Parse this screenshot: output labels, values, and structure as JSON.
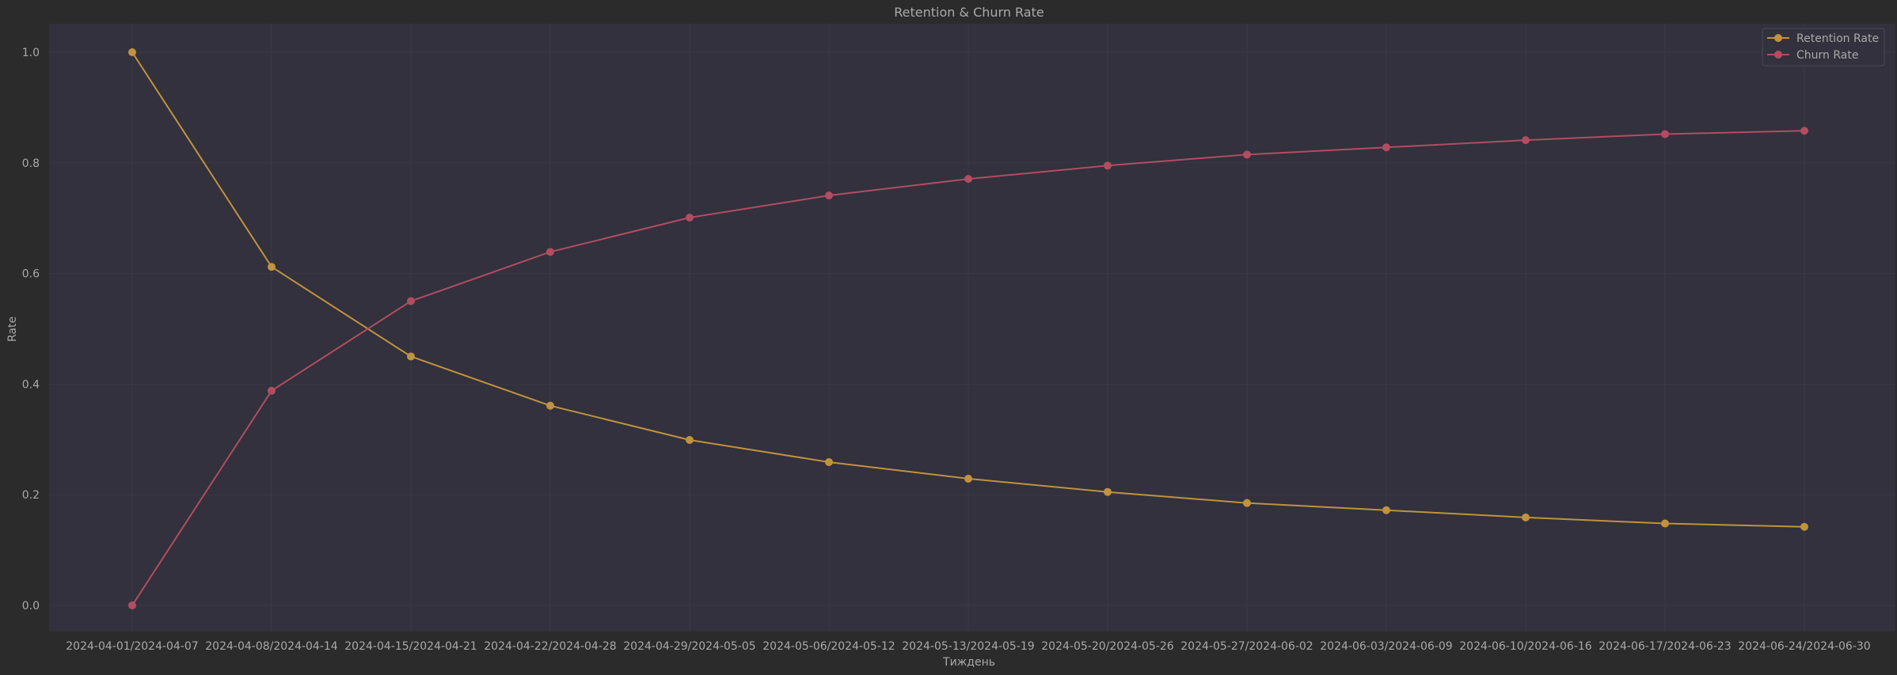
{
  "chart_data": {
    "type": "line",
    "title": "Retention & Churn Rate",
    "xlabel": "Тиждень",
    "ylabel": "Rate",
    "categories": [
      "2024-04-01/2024-04-07",
      "2024-04-08/2024-04-14",
      "2024-04-15/2024-04-21",
      "2024-04-22/2024-04-28",
      "2024-04-29/2024-05-05",
      "2024-05-06/2024-05-12",
      "2024-05-13/2024-05-19",
      "2024-05-20/2024-05-26",
      "2024-05-27/2024-06-02",
      "2024-06-03/2024-06-09",
      "2024-06-10/2024-06-16",
      "2024-06-17/2024-06-23",
      "2024-06-24/2024-06-30"
    ],
    "series": [
      {
        "name": "Retention Rate",
        "color": "#c1923f",
        "values": [
          1.0,
          0.612,
          0.45,
          0.361,
          0.299,
          0.259,
          0.229,
          0.205,
          0.185,
          0.172,
          0.159,
          0.148,
          0.142
        ]
      },
      {
        "name": "Churn Rate",
        "color": "#b24d61",
        "values": [
          0.0,
          0.388,
          0.55,
          0.639,
          0.701,
          0.741,
          0.771,
          0.795,
          0.815,
          0.828,
          0.841,
          0.852,
          0.858
        ]
      }
    ],
    "yticks": [
      "0.0",
      "0.2",
      "0.4",
      "0.6",
      "0.8",
      "1.0"
    ],
    "ylim": [
      -0.05,
      1.05
    ],
    "grid": true,
    "legend": "top-right",
    "colors": {
      "figure_bg": "#2b2b2b",
      "plot_bg": "#32313d",
      "grid": "#3a3946",
      "text": "#a9a9a9"
    }
  }
}
